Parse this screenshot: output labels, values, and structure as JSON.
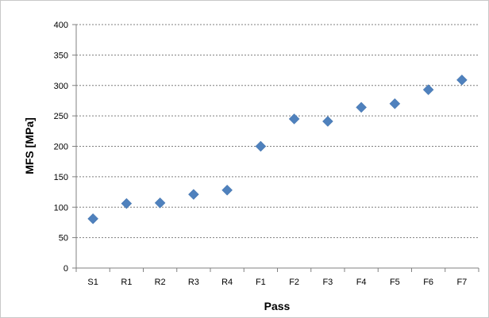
{
  "chart_data": {
    "type": "scatter",
    "title": "",
    "xlabel": "Pass",
    "ylabel": "MFS [MPa]",
    "categories": [
      "S1",
      "R1",
      "R2",
      "R3",
      "R4",
      "F1",
      "F2",
      "F3",
      "F4",
      "F5",
      "F6",
      "F7"
    ],
    "series": [
      {
        "values": [
          81,
          106,
          107,
          121,
          128,
          200,
          245,
          241,
          264,
          270,
          293,
          309
        ]
      }
    ],
    "ylim": [
      0,
      400
    ],
    "yticks": [
      0,
      50,
      100,
      150,
      200,
      250,
      300,
      350,
      400
    ],
    "grid": "horizontal dotted",
    "legend": "none",
    "marker": "diamond",
    "colors": {
      "marker": "#4f81bd",
      "grid": "#808080",
      "axis": "#808080"
    }
  }
}
